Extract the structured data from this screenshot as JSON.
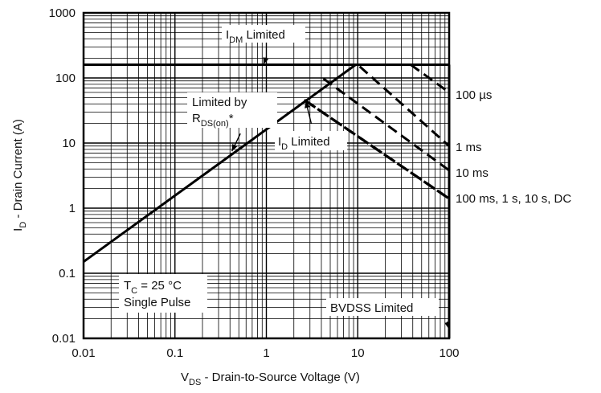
{
  "chart_data": {
    "type": "line",
    "x_scale": "log",
    "y_scale": "log",
    "xlim": [
      0.01,
      100
    ],
    "ylim": [
      0.01,
      1000
    ],
    "grid": true,
    "x_ticks": [
      "0.01",
      "0.1",
      "1",
      "10",
      "100"
    ],
    "y_ticks": [
      "0.01",
      "0.1",
      "1",
      "10",
      "100",
      "1000"
    ],
    "xlabel": {
      "main": "V",
      "sub": "DS",
      "rest": " - Drain-to-Source Voltage (V)"
    },
    "ylabel": {
      "main": "I",
      "sub": "D",
      "rest": " - Drain Current (A)"
    },
    "series": [
      {
        "name": "IDM Limited",
        "style": "solid",
        "points": [
          [
            0.01,
            160
          ],
          [
            100,
            160
          ]
        ]
      },
      {
        "name": "Limited by RDS(on)*",
        "style": "solid",
        "points": [
          [
            0.01,
            0.15
          ],
          [
            9.5,
            160
          ]
        ]
      },
      {
        "name": "100 µs",
        "style": "dashed",
        "points": [
          [
            38,
            160
          ],
          [
            100,
            60
          ]
        ]
      },
      {
        "name": "1 ms",
        "style": "dashed",
        "points": [
          [
            10.5,
            150
          ],
          [
            100,
            9
          ]
        ]
      },
      {
        "name": "10 ms",
        "style": "dashed",
        "points": [
          [
            4.2,
            98
          ],
          [
            100,
            3.8
          ]
        ]
      },
      {
        "name": "100 ms, 1 s, 10 s, DC",
        "style": "dashed-bold",
        "points": [
          [
            2.6,
            46
          ],
          [
            100,
            1.4
          ]
        ]
      },
      {
        "name": "BVDSS Limited",
        "style": "solid",
        "points": [
          [
            100,
            0.01
          ],
          [
            100,
            160
          ]
        ]
      }
    ],
    "annotations": {
      "idm": {
        "main": "I",
        "sub": "DM",
        "rest": " Limited"
      },
      "rds_line1": "Limited by",
      "rds_line2": {
        "main": "R",
        "sub": "DS(on)",
        "rest": "*"
      },
      "id": {
        "main": "I",
        "sub": "D",
        "rest": " Limited"
      },
      "curve_100us": "100 µs",
      "curve_1ms": "1 ms",
      "curve_10ms": "10 ms",
      "curve_dc": "100 ms, 1 s, 10 s, DC",
      "tc": {
        "main": "T",
        "sub": "C",
        "rest": " = 25 °C"
      },
      "single_pulse": "Single Pulse",
      "bvdss": "BVDSS Limited"
    }
  }
}
